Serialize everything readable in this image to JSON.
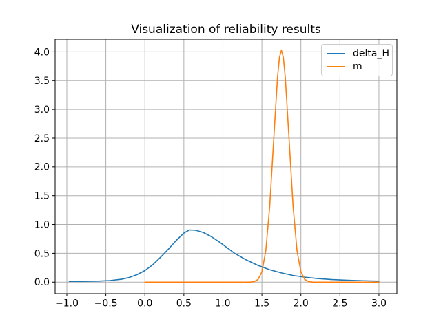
{
  "chart_data": {
    "type": "line",
    "title": "Visualization of reliability results",
    "xlabel": "",
    "ylabel": "",
    "xlim": [
      -1.15,
      3.23
    ],
    "ylim": [
      -0.2,
      4.22
    ],
    "grid": true,
    "grid_color": "#b0b0b0",
    "axes_edge_color": "#000000",
    "background_color": "#ffffff",
    "legend": {
      "position": "upper right",
      "entries": [
        "delta_H",
        "m"
      ]
    },
    "xticks": [
      {
        "value": -1.0,
        "label": "−1.0"
      },
      {
        "value": -0.5,
        "label": "−0.5"
      },
      {
        "value": 0.0,
        "label": "0.0"
      },
      {
        "value": 0.5,
        "label": "0.5"
      },
      {
        "value": 1.0,
        "label": "1.0"
      },
      {
        "value": 1.5,
        "label": "1.5"
      },
      {
        "value": 2.0,
        "label": "2.0"
      },
      {
        "value": 2.5,
        "label": "2.5"
      },
      {
        "value": 3.0,
        "label": "3.0"
      }
    ],
    "yticks": [
      {
        "value": 0.0,
        "label": "0.0"
      },
      {
        "value": 0.5,
        "label": "0.5"
      },
      {
        "value": 1.0,
        "label": "1.0"
      },
      {
        "value": 1.5,
        "label": "1.5"
      },
      {
        "value": 2.0,
        "label": "2.0"
      },
      {
        "value": 2.5,
        "label": "2.5"
      },
      {
        "value": 3.0,
        "label": "3.0"
      },
      {
        "value": 3.5,
        "label": "3.5"
      },
      {
        "value": 4.0,
        "label": "4.0"
      }
    ],
    "series": [
      {
        "name": "delta_H",
        "color": "#1f77b4",
        "x": [
          -0.97,
          -0.8,
          -0.6,
          -0.45,
          -0.3,
          -0.2,
          -0.1,
          0.0,
          0.1,
          0.2,
          0.3,
          0.4,
          0.5,
          0.57,
          0.65,
          0.75,
          0.85,
          0.95,
          1.05,
          1.15,
          1.3,
          1.45,
          1.6,
          1.75,
          1.9,
          2.05,
          2.2,
          2.4,
          2.6,
          2.8,
          3.0
        ],
        "y": [
          0.013,
          0.013,
          0.017,
          0.027,
          0.05,
          0.08,
          0.13,
          0.2,
          0.3,
          0.43,
          0.57,
          0.72,
          0.85,
          0.905,
          0.9,
          0.86,
          0.79,
          0.7,
          0.6,
          0.5,
          0.385,
          0.29,
          0.215,
          0.16,
          0.115,
          0.085,
          0.063,
          0.044,
          0.032,
          0.024,
          0.018
        ]
      },
      {
        "name": "m",
        "color": "#ff7f0e",
        "x": [
          0.0,
          0.3,
          0.6,
          0.9,
          1.1,
          1.25,
          1.35,
          1.4,
          1.45,
          1.5,
          1.55,
          1.6,
          1.65,
          1.7,
          1.725,
          1.75,
          1.775,
          1.8,
          1.85,
          1.9,
          1.95,
          2.0,
          2.05,
          2.1,
          2.15,
          2.25,
          2.4,
          2.6,
          2.8,
          3.0
        ],
        "y": [
          0.0,
          0.0,
          0.0,
          0.0,
          0.0,
          0.0,
          0.001,
          0.009,
          0.045,
          0.177,
          0.545,
          1.309,
          2.444,
          3.556,
          3.906,
          4.03,
          3.906,
          3.556,
          2.444,
          1.309,
          0.545,
          0.177,
          0.045,
          0.009,
          0.001,
          0.0,
          0.0,
          0.0,
          0.0,
          0.0
        ]
      }
    ]
  }
}
